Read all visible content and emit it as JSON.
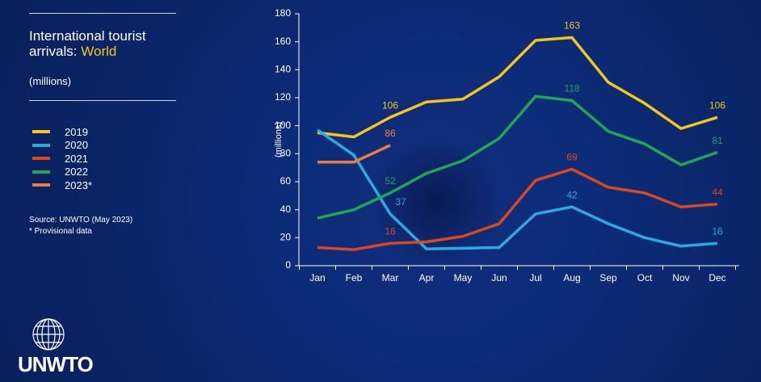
{
  "chart_data": {
    "type": "line",
    "title": "International tourist arrivals:",
    "title_highlight": "World",
    "subtitle": "(millions)",
    "ylabel": "(millions)",
    "source": "Source: UNWTO (May 2023)",
    "note": "* Provisional data",
    "logo": "UNWTO",
    "categories": [
      "Jan",
      "Feb",
      "Mar",
      "Apr",
      "May",
      "Jun",
      "Jul",
      "Aug",
      "Sep",
      "Oct",
      "Nov",
      "Dec"
    ],
    "ylim": [
      0,
      180
    ],
    "yticks": [
      0,
      20,
      40,
      60,
      80,
      100,
      120,
      140,
      160,
      180
    ],
    "series": [
      {
        "name": "2019",
        "color": "#f5c518",
        "values": [
          95,
          92,
          106,
          117,
          119,
          135,
          161,
          163,
          131,
          116,
          98,
          106
        ],
        "value_labels": [
          null,
          null,
          "106",
          null,
          null,
          null,
          null,
          "163",
          null,
          null,
          null,
          "106"
        ]
      },
      {
        "name": "2020",
        "color": "#29abe2",
        "values": [
          97,
          79,
          37,
          12,
          12.5,
          13,
          37,
          42,
          30,
          20,
          14,
          16
        ],
        "value_labels": [
          null,
          null,
          "37",
          null,
          null,
          null,
          null,
          "42",
          null,
          null,
          null,
          "16"
        ]
      },
      {
        "name": "2021",
        "color": "#d9481f",
        "values": [
          13,
          11.5,
          16,
          17,
          21,
          30,
          61,
          69,
          56,
          52,
          42,
          44
        ],
        "value_labels": [
          null,
          null,
          "16",
          null,
          null,
          null,
          null,
          "69",
          null,
          null,
          null,
          "44"
        ]
      },
      {
        "name": "2022",
        "color": "#1fa84f",
        "values": [
          34,
          40,
          52,
          66,
          75,
          91,
          121,
          118,
          96,
          87,
          72,
          81
        ],
        "value_labels": [
          null,
          null,
          "52",
          null,
          null,
          null,
          null,
          "118",
          null,
          null,
          null,
          "81"
        ]
      },
      {
        "name": "2023*",
        "color": "#f07c3a",
        "values": [
          74,
          74,
          86,
          null,
          null,
          null,
          null,
          null,
          null,
          null,
          null,
          null
        ],
        "value_labels": [
          null,
          null,
          "86",
          null,
          null,
          null,
          null,
          null,
          null,
          null,
          null,
          null
        ]
      }
    ]
  }
}
